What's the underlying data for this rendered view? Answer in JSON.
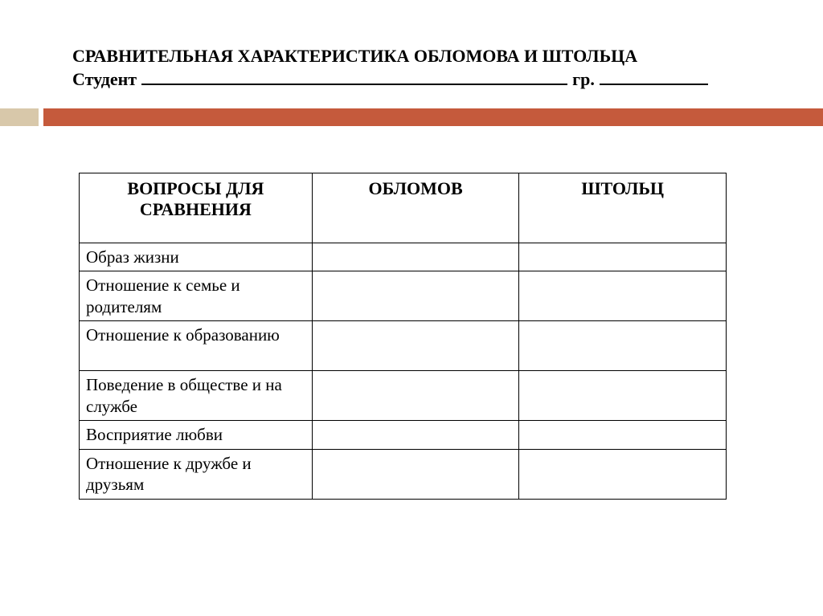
{
  "header": {
    "title": "СРАВНИТЕЛЬНАЯ ХАРАКТЕРИСТИКА ОБЛОМОВА И ШТОЛЬЦА",
    "student_label": "Студент",
    "group_label": "гр."
  },
  "accent": {
    "small_color": "#d8c8aa",
    "large_color": "#c55a3c",
    "gap_color": "#ffffff"
  },
  "table": {
    "columns": [
      "ВОПРОСЫ ДЛЯ СРАВНЕНИЯ",
      "ОБЛОМОВ",
      "ШТОЛЬЦ"
    ],
    "rows": [
      {
        "question": "Образ жизни",
        "oblomov": "",
        "stolz": "",
        "height": "single"
      },
      {
        "question": "Отношение к семье и родителям",
        "oblomov": "",
        "stolz": "",
        "height": "double"
      },
      {
        "question": "Отношение к образованию",
        "oblomov": "",
        "stolz": "",
        "height": "double"
      },
      {
        "question": "Поведение в обществе и на службе",
        "oblomov": "",
        "stolz": "",
        "height": "double"
      },
      {
        "question": "Восприятие любви",
        "oblomov": "",
        "stolz": "",
        "height": "single"
      },
      {
        "question": "Отношение к дружбе и друзьям",
        "oblomov": "",
        "stolz": "",
        "height": "double"
      }
    ],
    "border_color": "#000000",
    "text_color": "#000000",
    "header_fontsize": 22,
    "cell_fontsize": 21
  },
  "background_color": "#ffffff"
}
